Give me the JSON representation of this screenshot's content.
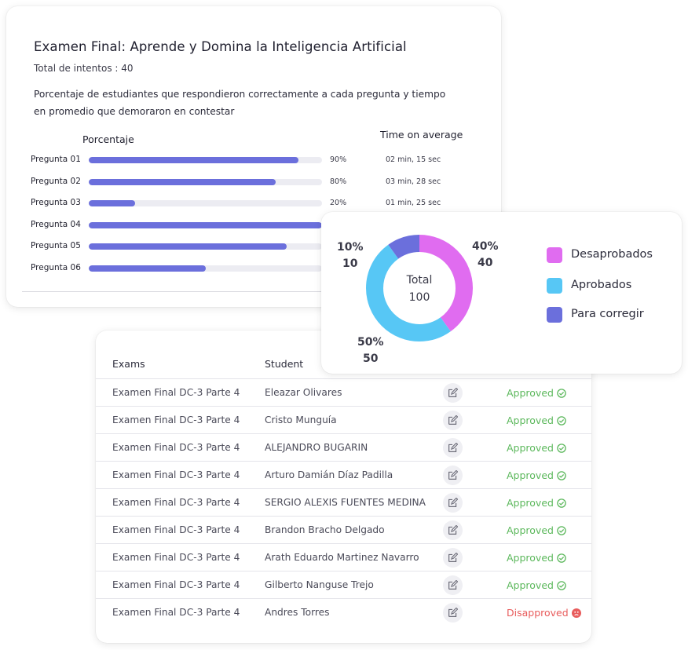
{
  "exam": {
    "title": "Examen Final: Aprende y Domina la Inteligencia Artificial",
    "attempts": "Total de intentos : 40",
    "description": "Porcentaje de estudiantes que respondieron correctamente a cada pregunta y tiempo en promedio que demoraron en contestar",
    "col_percentage": "Porcentaje",
    "col_time": "Time on average",
    "questions": [
      {
        "label": "Pregunta 01",
        "percent": 90,
        "percent_label": "90%",
        "time": "02 min, 15 sec"
      },
      {
        "label": "Pregunta 02",
        "percent": 80,
        "percent_label": "80%",
        "time": "03 min, 28 sec"
      },
      {
        "label": "Pregunta 03",
        "percent": 20,
        "percent_label": "20%",
        "time": "01 min, 25 sec"
      },
      {
        "label": "Pregunta 04",
        "percent": 100,
        "percent_label": "",
        "time": ""
      },
      {
        "label": "Pregunta 05",
        "percent": 85,
        "percent_label": "",
        "time": ""
      },
      {
        "label": "Pregunta 06",
        "percent": 50,
        "percent_label": "",
        "time": ""
      }
    ],
    "bar_color": "#6b6fdc"
  },
  "donut": {
    "center_label": "Total",
    "center_value": "100",
    "segments": [
      {
        "name": "Desaprobados",
        "value": 40,
        "percent_label": "40%",
        "count_label": "40",
        "color": "#e06cf0"
      },
      {
        "name": "Aprobados",
        "value": 50,
        "percent_label": "50%",
        "count_label": "50",
        "color": "#57c7f5"
      },
      {
        "name": "Para corregir",
        "value": 10,
        "percent_label": "10%",
        "count_label": "10",
        "color": "#6b6fdc"
      }
    ]
  },
  "table": {
    "headers": {
      "exams": "Exams",
      "student": "Student"
    },
    "rows": [
      {
        "exam": "Examen Final DC-3 Parte 4",
        "student": "Eleazar Olivares",
        "status": "Approved",
        "ok": true
      },
      {
        "exam": "Examen Final DC-3 Parte 4",
        "student": "Cristo Munguía",
        "status": "Approved",
        "ok": true
      },
      {
        "exam": "Examen Final DC-3 Parte 4",
        "student": "ALEJANDRO BUGARIN",
        "status": "Approved",
        "ok": true
      },
      {
        "exam": "Examen Final DC-3 Parte 4",
        "student": "Arturo Damián Díaz Padilla",
        "status": "Approved",
        "ok": true
      },
      {
        "exam": "Examen Final DC-3 Parte 4",
        "student": "SERGIO ALEXIS FUENTES MEDINA",
        "status": "Approved",
        "ok": true
      },
      {
        "exam": "Examen Final DC-3 Parte 4",
        "student": "Brandon Bracho Delgado",
        "status": "Approved",
        "ok": true
      },
      {
        "exam": "Examen Final DC-3 Parte 4",
        "student": "Arath Eduardo Martinez Navarro",
        "status": "Approved",
        "ok": true
      },
      {
        "exam": "Examen Final DC-3 Parte 4",
        "student": "Gilberto Nanguse Trejo",
        "status": "Approved",
        "ok": true
      },
      {
        "exam": "Examen Final DC-3 Parte 4",
        "student": "Andres Torres",
        "status": "Disapproved",
        "ok": false
      }
    ],
    "edit_icon": "edit-icon",
    "approved_icon": "check-circle-icon",
    "disapproved_icon": "sad-face-icon",
    "approved_color": "#5cb85c",
    "disapproved_color": "#e85c5c"
  }
}
